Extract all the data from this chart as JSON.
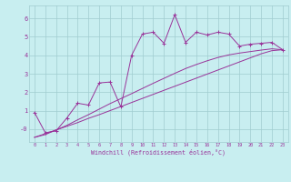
{
  "xlabel": "Windchill (Refroidissement éolien,°C)",
  "bg_color": "#c8eef0",
  "line_color": "#993399",
  "grid_color": "#a0ccd0",
  "x_data": [
    0,
    1,
    2,
    3,
    4,
    5,
    6,
    7,
    8,
    9,
    10,
    11,
    12,
    13,
    14,
    15,
    16,
    17,
    18,
    19,
    20,
    21,
    22,
    23
  ],
  "y_series1": [
    0.9,
    -0.2,
    -0.1,
    0.6,
    1.4,
    1.3,
    2.5,
    2.55,
    1.2,
    4.0,
    5.15,
    5.25,
    4.65,
    6.2,
    4.7,
    5.25,
    5.1,
    5.25,
    5.15,
    4.5,
    4.6,
    4.65,
    4.7,
    4.3
  ],
  "y_linear1": [
    -0.45,
    -0.25,
    -0.05,
    0.15,
    0.35,
    0.58,
    0.78,
    1.0,
    1.22,
    1.44,
    1.66,
    1.88,
    2.1,
    2.32,
    2.54,
    2.76,
    2.98,
    3.2,
    3.42,
    3.64,
    3.86,
    4.08,
    4.25,
    4.3
  ],
  "y_linear2": [
    -0.45,
    -0.3,
    -0.05,
    0.2,
    0.5,
    0.78,
    1.08,
    1.38,
    1.65,
    1.92,
    2.2,
    2.48,
    2.75,
    3.02,
    3.28,
    3.5,
    3.7,
    3.88,
    4.02,
    4.12,
    4.2,
    4.28,
    4.35,
    4.3
  ],
  "ylim": [
    -0.7,
    6.7
  ],
  "xlim": [
    -0.5,
    23.5
  ],
  "yticks": [
    0,
    1,
    2,
    3,
    4,
    5,
    6
  ],
  "ytick_labels": [
    "-0",
    "1",
    "2",
    "3",
    "4",
    "5",
    "6"
  ]
}
